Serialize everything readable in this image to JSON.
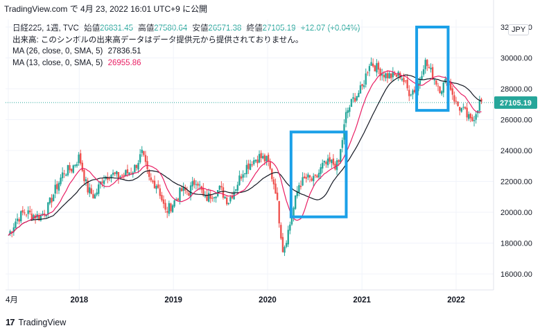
{
  "header": {
    "publish_line": "TradingView.com で 4月 23, 2022 16:01 UTC+9 に公開"
  },
  "legend": {
    "symbol": "日経225, 1週, TVC",
    "open_label": "始値",
    "open": "26831.45",
    "high_label": "高値",
    "high": "27580.64",
    "low_label": "安値",
    "low": "26571.38",
    "close_label": "終値",
    "close": "27105.19",
    "change": "+12.07 (+0.04%)",
    "volume_note": "出来高: このシンボルの出来高データはデータ提供元から提供されておりません。",
    "ma1_label": "MA (26, close, 0, SMA, 5)",
    "ma1_value": "27836.51",
    "ma2_label": "MA (13, close, 0, SMA, 5)",
    "ma2_value": "26955.86"
  },
  "currency": "JPY",
  "footer": {
    "logo_text": "17",
    "brand": "TradingView"
  },
  "colors": {
    "up": "#26a69a",
    "down": "#ef5350",
    "ma26": "#131722",
    "ma13": "#e91e63",
    "highlight": "#1ba0e8",
    "price_tag": "#26a69a"
  },
  "chart_data": {
    "type": "candlestick",
    "interval": "weekly",
    "y_ticks": [
      16000,
      18000,
      20000,
      22000,
      24000,
      26000,
      28000,
      30000,
      32000
    ],
    "y_tick_labels": [
      "16000.00",
      "18000.00",
      "20000.00",
      "22000.00",
      "24000.00",
      "26000.00",
      "28000.00",
      "30000.00",
      "32000.00"
    ],
    "x_tick_labels": [
      "4月",
      "2018",
      "2019",
      "2020",
      "2021",
      "2022"
    ],
    "x_tick_dates": [
      "2017-04",
      "2018-01",
      "2019-01",
      "2020-01",
      "2021-01",
      "2022-01"
    ],
    "last_price": "27105.19",
    "close_path": [
      [
        "2017-04",
        18500
      ],
      [
        "2017-05",
        19500
      ],
      [
        "2017-06",
        20000
      ],
      [
        "2017-08",
        19700
      ],
      [
        "2017-09",
        20300
      ],
      [
        "2017-10",
        21500
      ],
      [
        "2017-11",
        22600
      ],
      [
        "2017-12",
        22800
      ],
      [
        "2018-01",
        23600
      ],
      [
        "2018-02",
        21500
      ],
      [
        "2018-03",
        21000
      ],
      [
        "2018-04",
        22200
      ],
      [
        "2018-05",
        22500
      ],
      [
        "2018-06",
        22300
      ],
      [
        "2018-07",
        22500
      ],
      [
        "2018-08",
        22800
      ],
      [
        "2018-09",
        23800
      ],
      [
        "2018-10",
        22000
      ],
      [
        "2018-11",
        21800
      ],
      [
        "2018-12",
        20000
      ],
      [
        "2019-01",
        20600
      ],
      [
        "2019-02",
        21400
      ],
      [
        "2019-03",
        21300
      ],
      [
        "2019-04",
        22200
      ],
      [
        "2019-05",
        20800
      ],
      [
        "2019-06",
        21200
      ],
      [
        "2019-07",
        21500
      ],
      [
        "2019-08",
        20700
      ],
      [
        "2019-09",
        21700
      ],
      [
        "2019-10",
        22800
      ],
      [
        "2019-11",
        23300
      ],
      [
        "2019-12",
        23600
      ],
      [
        "2020-01",
        23300
      ],
      [
        "2020-02",
        21500
      ],
      [
        "2020-03",
        17500
      ],
      [
        "2020-04",
        19500
      ],
      [
        "2020-05",
        21800
      ],
      [
        "2020-06",
        22200
      ],
      [
        "2020-07",
        22000
      ],
      [
        "2020-08",
        23000
      ],
      [
        "2020-09",
        23200
      ],
      [
        "2020-10",
        23000
      ],
      [
        "2020-11",
        26400
      ],
      [
        "2020-12",
        27400
      ],
      [
        "2021-01",
        28000
      ],
      [
        "2021-02",
        29800
      ],
      [
        "2021-03",
        29300
      ],
      [
        "2021-04",
        28900
      ],
      [
        "2021-05",
        28800
      ],
      [
        "2021-06",
        28900
      ],
      [
        "2021-07",
        27800
      ],
      [
        "2021-08",
        28000
      ],
      [
        "2021-09",
        29800
      ],
      [
        "2021-10",
        28900
      ],
      [
        "2021-11",
        28000
      ],
      [
        "2021-12",
        28600
      ],
      [
        "2022-01",
        27000
      ],
      [
        "2022-02",
        26500
      ],
      [
        "2022-03",
        25800
      ],
      [
        "2022-04",
        27105
      ]
    ],
    "moving_averages": [
      {
        "name": "MA (26, close, 0, SMA, 5)",
        "period": 26
      },
      {
        "name": "MA (13, close, 0, SMA, 5)",
        "period": 13
      }
    ],
    "annotations": [
      {
        "type": "rectangle",
        "from": "2020-04",
        "to": "2020-11",
        "low": 19700,
        "high": 25200
      },
      {
        "type": "rectangle",
        "from": "2021-08",
        "to": "2021-12",
        "low": 26600,
        "high": 32000
      }
    ]
  }
}
